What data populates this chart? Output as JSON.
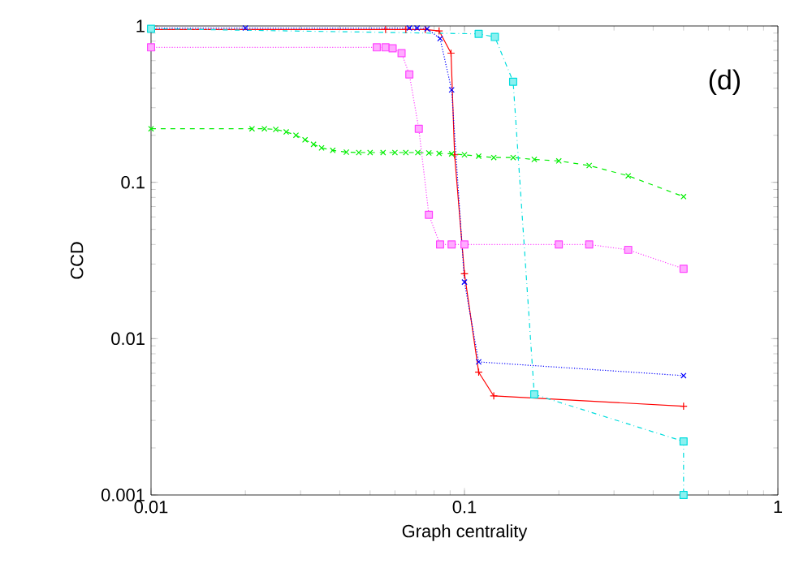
{
  "chart_data": {
    "type": "line",
    "xlabel": "Graph centrality",
    "ylabel": "CCD",
    "annotations": [
      "(d)"
    ],
    "log": "xy",
    "xlim": [
      0.01,
      1
    ],
    "ylim": [
      0.001,
      1
    ],
    "xticks": [
      0.01,
      0.1,
      1
    ],
    "yticks": [
      0.001,
      0.01,
      0.1,
      1
    ],
    "series": [
      {
        "color": "#ff0000",
        "marker": "plus",
        "line_style": "solid",
        "x": [
          0.01,
          0.056,
          0.065,
          0.075,
          0.083,
          0.0906,
          0.093,
          0.1,
          0.111,
          0.124,
          0.5
        ],
        "values": [
          0.95,
          0.95,
          0.95,
          0.95,
          0.93,
          0.67,
          0.15,
          0.026,
          0.0061,
          0.0043,
          0.0037
        ]
      },
      {
        "color": "#00ee00",
        "marker": "cross",
        "line_style": "dashed",
        "x": [
          0.01,
          0.021,
          0.023,
          0.025,
          0.027,
          0.029,
          0.031,
          0.033,
          0.035,
          0.038,
          0.042,
          0.046,
          0.05,
          0.055,
          0.06,
          0.065,
          0.071,
          0.077,
          0.083,
          0.091,
          0.1,
          0.111,
          0.124,
          0.143,
          0.167,
          0.2,
          0.25,
          0.333,
          0.5
        ],
        "values": [
          0.22,
          0.22,
          0.22,
          0.218,
          0.21,
          0.2,
          0.187,
          0.175,
          0.166,
          0.16,
          0.156,
          0.155,
          0.155,
          0.155,
          0.155,
          0.155,
          0.155,
          0.154,
          0.153,
          0.152,
          0.15,
          0.147,
          0.144,
          0.144,
          0.14,
          0.137,
          0.128,
          0.11,
          0.081
        ]
      },
      {
        "color": "#0000ff",
        "marker": "cross",
        "line_style": "dotted",
        "x": [
          0.01,
          0.02,
          0.0667,
          0.0706,
          0.076,
          0.0836,
          0.091,
          0.1,
          0.111,
          0.5
        ],
        "values": [
          0.97,
          0.97,
          0.97,
          0.97,
          0.96,
          0.83,
          0.39,
          0.023,
          0.0071,
          0.0058
        ]
      },
      {
        "color": "#ff44ff",
        "marker": "square",
        "line_style": "dotted",
        "x": [
          0.01,
          0.0525,
          0.056,
          0.059,
          0.063,
          0.0667,
          0.0715,
          0.077,
          0.0836,
          0.091,
          0.1,
          0.2,
          0.25,
          0.333,
          0.5
        ],
        "values": [
          0.73,
          0.73,
          0.73,
          0.72,
          0.67,
          0.49,
          0.22,
          0.062,
          0.04,
          0.04,
          0.04,
          0.04,
          0.04,
          0.037,
          0.028
        ]
      },
      {
        "color": "#00dddd",
        "marker": "square",
        "line_style": "dashdot",
        "x": [
          0.01,
          0.111,
          0.125,
          0.143,
          0.167,
          0.5,
          0.5
        ],
        "values": [
          0.96,
          0.89,
          0.85,
          0.44,
          0.0044,
          0.0022,
          0.001
        ]
      }
    ]
  }
}
